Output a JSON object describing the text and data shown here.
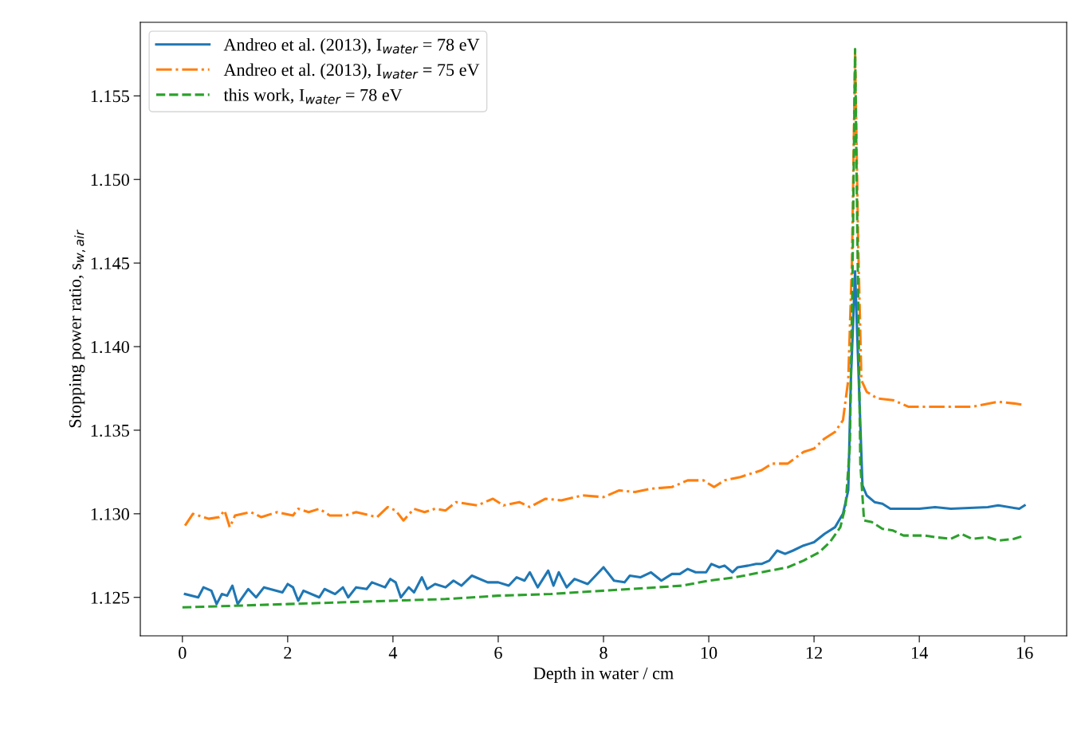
{
  "chart_data": {
    "type": "line",
    "xlabel": "Depth in water / cm",
    "ylabel": "Stopping power ratio, s$_{w,air}$",
    "xlim": [
      -0.8,
      16.8
    ],
    "ylim": [
      1.1227,
      1.1594
    ],
    "xticks": [
      0,
      2,
      4,
      6,
      8,
      10,
      12,
      14,
      16
    ],
    "yticks": [
      1.125,
      {
        "value": 1.13,
        "label": "1.130"
      },
      1.135,
      {
        "value": 1.14,
        "label": "1.140"
      },
      1.145,
      {
        "value": 1.15,
        "label": "1.150"
      },
      1.155
    ],
    "grid": false,
    "legend": "top left",
    "series": [
      {
        "name": "Andreo et al. (2013), I$_{water}$ = 78 eV",
        "color": "#1f77b4",
        "line_style": "solid",
        "x": [
          0.05,
          0.3,
          0.4,
          0.55,
          0.65,
          0.75,
          0.85,
          0.95,
          1.05,
          1.25,
          1.4,
          1.55,
          1.9,
          2.0,
          2.1,
          2.2,
          2.3,
          2.6,
          2.7,
          2.9,
          3.05,
          3.15,
          3.3,
          3.5,
          3.6,
          3.85,
          3.95,
          4.05,
          4.15,
          4.3,
          4.4,
          4.55,
          4.65,
          4.8,
          5.0,
          5.15,
          5.3,
          5.5,
          5.8,
          6.0,
          6.2,
          6.35,
          6.5,
          6.6,
          6.75,
          6.95,
          7.05,
          7.15,
          7.3,
          7.45,
          7.7,
          8.0,
          8.2,
          8.4,
          8.5,
          8.7,
          8.9,
          9.1,
          9.3,
          9.45,
          9.6,
          9.75,
          9.95,
          10.05,
          10.2,
          10.3,
          10.45,
          10.55,
          10.75,
          10.9,
          11.0,
          11.15,
          11.3,
          11.45,
          11.6,
          11.8,
          12.0,
          12.2,
          12.4,
          12.55,
          12.65,
          12.7,
          12.78,
          12.85,
          12.92,
          13.0,
          13.15,
          13.3,
          13.45,
          13.6,
          14.0,
          14.3,
          14.6,
          15.3,
          15.5,
          15.9,
          16.0
        ],
        "values": [
          1.1252,
          1.125,
          1.1256,
          1.1254,
          1.1246,
          1.1252,
          1.1251,
          1.1257,
          1.1246,
          1.1255,
          1.125,
          1.1256,
          1.1253,
          1.1258,
          1.1256,
          1.1248,
          1.1254,
          1.125,
          1.1255,
          1.1252,
          1.1256,
          1.125,
          1.1256,
          1.1255,
          1.1259,
          1.1256,
          1.1261,
          1.1259,
          1.125,
          1.1256,
          1.1253,
          1.1262,
          1.1255,
          1.1258,
          1.1256,
          1.126,
          1.1257,
          1.1263,
          1.1259,
          1.1259,
          1.1257,
          1.1262,
          1.126,
          1.1265,
          1.1256,
          1.1266,
          1.1257,
          1.1265,
          1.1256,
          1.1261,
          1.1258,
          1.1268,
          1.126,
          1.1259,
          1.1263,
          1.1262,
          1.1265,
          1.126,
          1.1264,
          1.1264,
          1.1267,
          1.1265,
          1.1265,
          1.127,
          1.1268,
          1.1269,
          1.1265,
          1.1268,
          1.1269,
          1.127,
          1.127,
          1.1272,
          1.1278,
          1.1276,
          1.1278,
          1.1281,
          1.1283,
          1.1288,
          1.1292,
          1.13,
          1.1314,
          1.138,
          1.1445,
          1.138,
          1.1317,
          1.1311,
          1.1307,
          1.1306,
          1.1303,
          1.1303,
          1.1303,
          1.1304,
          1.1303,
          1.1304,
          1.1305,
          1.1303,
          1.1305
        ]
      },
      {
        "name": "Andreo et al. (2013), I$_{water}$ = 75 eV",
        "color": "#ff7f0e",
        "line_style": "dashdot",
        "x": [
          0.05,
          0.2,
          0.5,
          0.7,
          0.8,
          0.9,
          1.0,
          1.3,
          1.5,
          1.8,
          2.1,
          2.2,
          2.4,
          2.6,
          2.8,
          3.1,
          3.3,
          3.7,
          3.9,
          4.05,
          4.2,
          4.4,
          4.6,
          4.8,
          5.0,
          5.2,
          5.6,
          5.9,
          6.1,
          6.4,
          6.6,
          6.9,
          7.2,
          7.6,
          8.0,
          8.3,
          8.6,
          8.9,
          9.3,
          9.6,
          9.9,
          10.1,
          10.3,
          10.6,
          11.0,
          11.2,
          11.5,
          11.8,
          12.0,
          12.2,
          12.4,
          12.55,
          12.65,
          12.72,
          12.78,
          12.84,
          12.9,
          13.0,
          13.2,
          13.5,
          13.8,
          14.2,
          15.0,
          15.5,
          15.8,
          16.0
        ],
        "values": [
          1.1293,
          1.13,
          1.1297,
          1.1298,
          1.1302,
          1.1292,
          1.1299,
          1.1301,
          1.1298,
          1.1301,
          1.1299,
          1.1303,
          1.1301,
          1.1303,
          1.1299,
          1.1299,
          1.1301,
          1.1298,
          1.1304,
          1.1302,
          1.1296,
          1.1303,
          1.1301,
          1.1303,
          1.1302,
          1.1307,
          1.1305,
          1.1309,
          1.1305,
          1.1307,
          1.1304,
          1.1309,
          1.1308,
          1.1311,
          1.131,
          1.1314,
          1.1313,
          1.1315,
          1.1316,
          1.132,
          1.132,
          1.1316,
          1.132,
          1.1322,
          1.1326,
          1.133,
          1.133,
          1.1337,
          1.1339,
          1.1345,
          1.1349,
          1.1356,
          1.138,
          1.145,
          1.1575,
          1.146,
          1.138,
          1.1373,
          1.1369,
          1.1368,
          1.1364,
          1.1364,
          1.1364,
          1.1367,
          1.1366,
          1.1365
        ]
      },
      {
        "name": "this work, I$_{water}$ = 78 eV",
        "color": "#2ca02c",
        "line_style": "dashed",
        "x": [
          0.0,
          1.0,
          2.0,
          3.0,
          4.0,
          5.0,
          6.0,
          7.0,
          8.0,
          9.0,
          9.5,
          10.0,
          10.5,
          11.0,
          11.5,
          11.8,
          12.1,
          12.3,
          12.5,
          12.6,
          12.68,
          12.73,
          12.78,
          12.83,
          12.88,
          12.95,
          13.1,
          13.3,
          13.5,
          13.7,
          13.9,
          14.1,
          14.3,
          14.6,
          14.8,
          15.0,
          15.3,
          15.5,
          15.8,
          16.0
        ],
        "values": [
          1.1244,
          1.1245,
          1.1246,
          1.1247,
          1.1248,
          1.1249,
          1.1251,
          1.1252,
          1.1254,
          1.1256,
          1.1257,
          1.126,
          1.1262,
          1.1265,
          1.1268,
          1.1272,
          1.1277,
          1.1283,
          1.1292,
          1.1305,
          1.134,
          1.144,
          1.1578,
          1.145,
          1.133,
          1.1296,
          1.1295,
          1.1291,
          1.129,
          1.1287,
          1.1287,
          1.1287,
          1.1286,
          1.1285,
          1.1288,
          1.1285,
          1.1286,
          1.1284,
          1.1285,
          1.1287
        ]
      }
    ]
  }
}
